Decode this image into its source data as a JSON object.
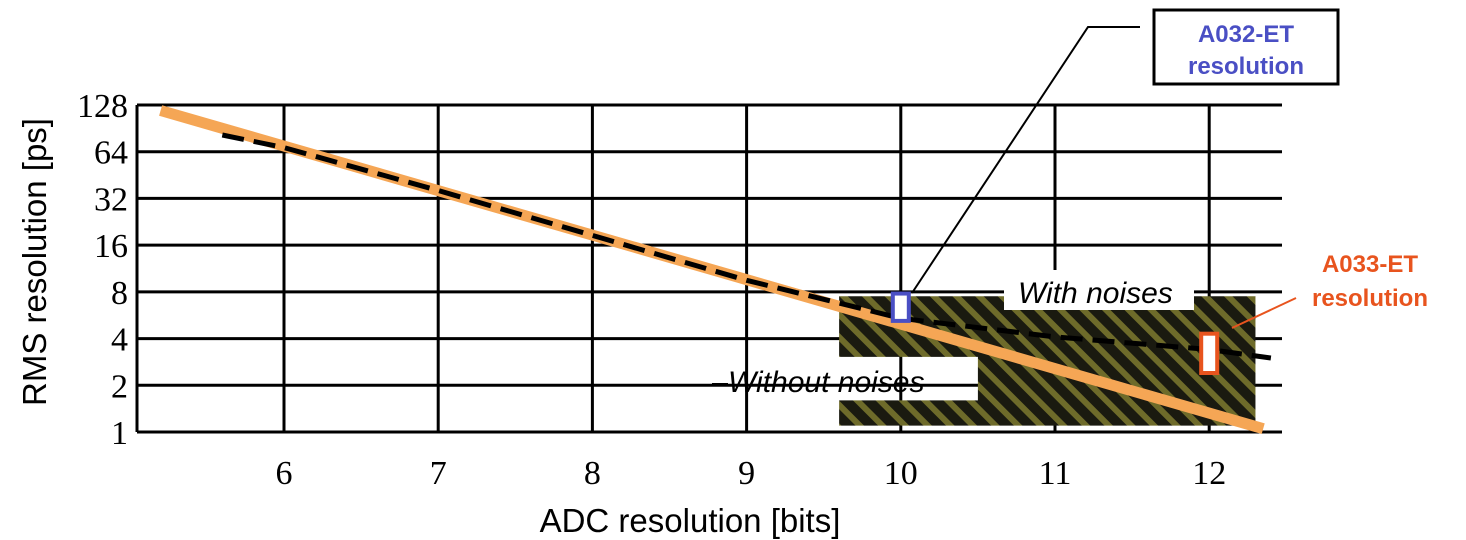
{
  "chart_data": {
    "type": "line",
    "xlabel": "ADC resolution [bits]",
    "ylabel": "RMS resolution  [ps]",
    "y_scale": "log2",
    "xlim": [
      5.1,
      12.5
    ],
    "ylim": [
      1,
      128
    ],
    "x_ticks": [
      6,
      7,
      8,
      9,
      10,
      11,
      12
    ],
    "y_ticks": [
      128,
      64,
      32,
      16,
      8,
      4,
      2,
      1
    ],
    "grid": true,
    "series": [
      {
        "name": "",
        "style": "solid",
        "color": "#F5A655",
        "x": [
          5.2,
          12.35
        ],
        "y": [
          118,
          1.05
        ]
      },
      {
        "name": "",
        "style": "dashed",
        "color": "#000000",
        "x": [
          5.6,
          6,
          7,
          8,
          9,
          10,
          11,
          12,
          12.4
        ],
        "y": [
          82,
          68,
          36,
          18.5,
          9.5,
          5.4,
          4.1,
          3.4,
          3.0
        ]
      }
    ],
    "noise_region": {
      "label_with": "With noises",
      "label_without": "Without noises",
      "x_range": [
        9.6,
        12.3
      ],
      "y_range": [
        1.1,
        7.5
      ]
    },
    "markers": [
      {
        "label": "A032-ET resolution",
        "line1": "A032-ET",
        "line2": "resolution",
        "x": 10,
        "y_low": 5.2,
        "y_high": 7.8,
        "color": "#4A4FC4"
      },
      {
        "label": "A033-ET resolution",
        "line1": "A033-ET",
        "line2": "resolution",
        "x": 12,
        "y_low": 2.4,
        "y_high": 4.3,
        "color": "#E8541E"
      }
    ]
  }
}
